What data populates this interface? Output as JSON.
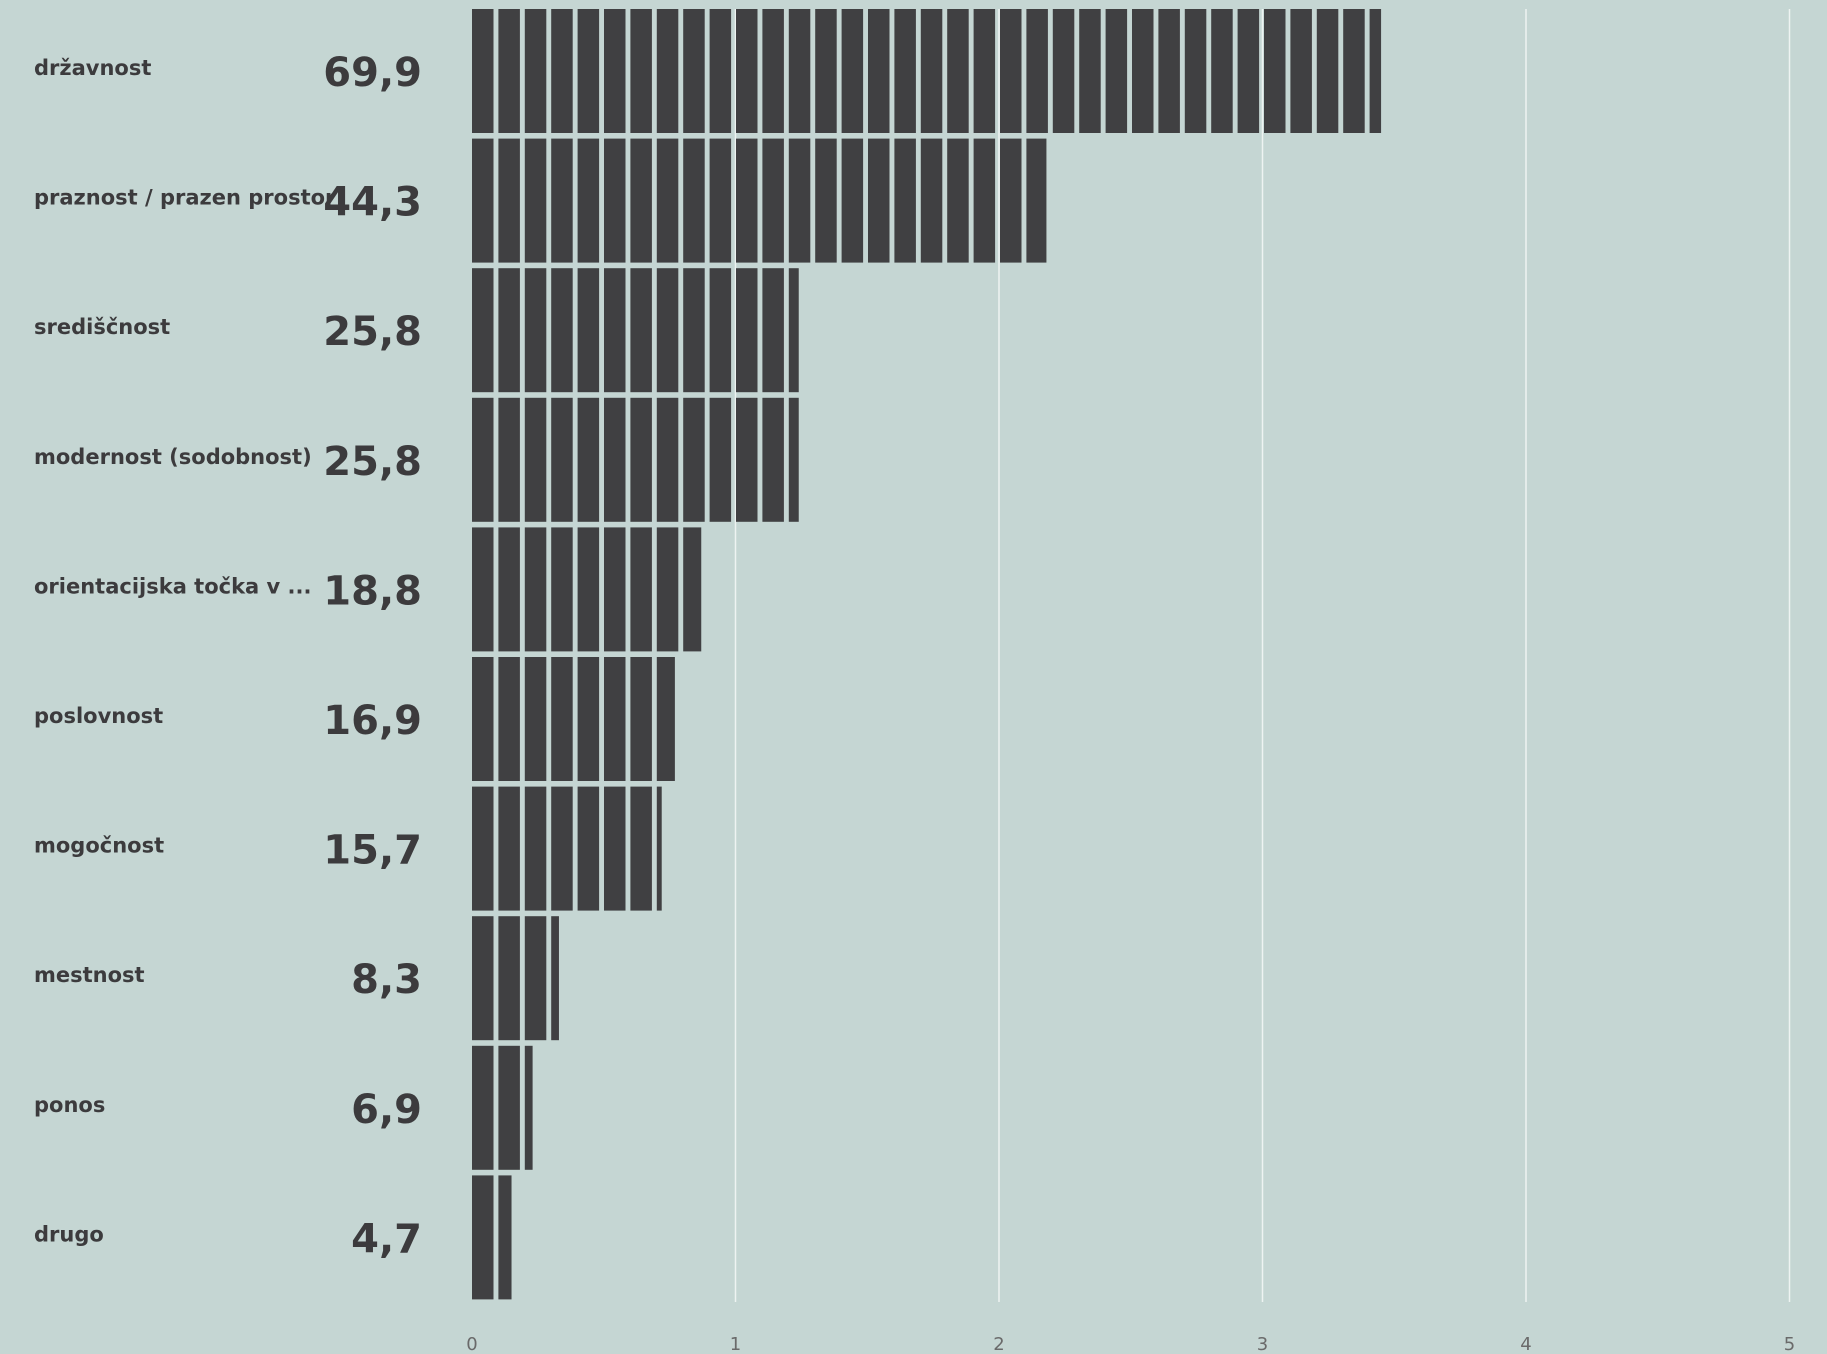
{
  "chart_data": {
    "type": "bar",
    "orientation": "horizontal",
    "categories": [
      "državnost",
      "praznost / prazen prostor",
      "središčnost",
      "modernost (sodobnost)",
      "orientacijska točka v ...",
      "poslovnost",
      "mogočnost",
      "mestnost",
      "ponos",
      "drugo"
    ],
    "value_labels": [
      "69,9",
      "44,3",
      "25,8",
      "25,8",
      "18,8",
      "16,9",
      "15,7",
      "8,3",
      "6,9",
      "4,7"
    ],
    "values": [
      69.9,
      44.3,
      25.8,
      25.8,
      18.8,
      16.9,
      15.7,
      8.3,
      6.9,
      4.7
    ],
    "bar_extent": [
      3.45,
      2.18,
      1.24,
      1.24,
      0.87,
      0.77,
      0.72,
      0.33,
      0.23,
      0.15
    ],
    "x_ticks": [
      "0",
      "1",
      "2",
      "3",
      "4",
      "5"
    ],
    "xlim": [
      0,
      5
    ],
    "title": "",
    "xlabel": "",
    "ylabel": "",
    "grid": true,
    "colors": {
      "background": "#c5d6d3",
      "bar": "#404042",
      "text": "#3c3b3d",
      "grid": "#eef3f2"
    }
  }
}
